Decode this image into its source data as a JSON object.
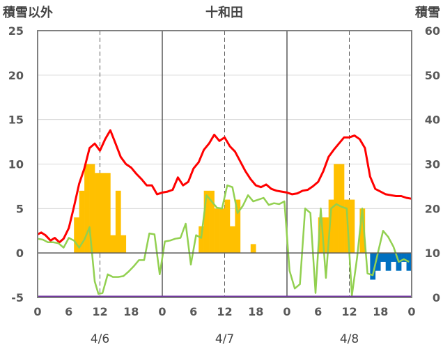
{
  "chart_data": {
    "type": "combo",
    "title": "十和田",
    "left_axis_label": "積雪以外",
    "right_axis_label": "積雪",
    "left_ylim": [
      -5,
      25
    ],
    "left_ticks": [
      "25",
      "20",
      "15",
      "10",
      "5",
      "0",
      "-5"
    ],
    "right_ylim": [
      0,
      60
    ],
    "right_ticks": [
      "60",
      "50",
      "40",
      "30",
      "20",
      "10",
      "0"
    ],
    "x_hours": [
      0,
      72
    ],
    "x_tick_labels": [
      "0",
      "6",
      "12",
      "18",
      "0",
      "6",
      "12",
      "18",
      "0",
      "6",
      "12",
      "18",
      "0"
    ],
    "dates": [
      "4/6",
      "4/7",
      "4/8"
    ],
    "grid": true,
    "series": [
      {
        "kind": "line",
        "color": "#ff0000",
        "points": [
          [
            0,
            2.1
          ],
          [
            0.7,
            2.3
          ],
          [
            1.5,
            2.0
          ],
          [
            2.5,
            1.4
          ],
          [
            3.3,
            1.7
          ],
          [
            4.2,
            1.2
          ],
          [
            5,
            1.6
          ],
          [
            6,
            2.8
          ],
          [
            7,
            5.2
          ],
          [
            8,
            7.8
          ],
          [
            9,
            9.5
          ],
          [
            10,
            11.8
          ],
          [
            11,
            12.3
          ],
          [
            12,
            11.5
          ],
          [
            13,
            12.8
          ],
          [
            14,
            13.8
          ],
          [
            15,
            12.3
          ],
          [
            16,
            10.8
          ],
          [
            17,
            10.0
          ],
          [
            18,
            9.6
          ],
          [
            19,
            8.9
          ],
          [
            20,
            8.3
          ],
          [
            21,
            7.6
          ],
          [
            22,
            7.6
          ],
          [
            23,
            6.6
          ],
          [
            24,
            6.8
          ],
          [
            25,
            6.9
          ],
          [
            26,
            7.1
          ],
          [
            27,
            8.5
          ],
          [
            28,
            7.6
          ],
          [
            29,
            8.0
          ],
          [
            30,
            9.5
          ],
          [
            31,
            10.2
          ],
          [
            32,
            11.6
          ],
          [
            33,
            12.3
          ],
          [
            34,
            13.3
          ],
          [
            35,
            12.6
          ],
          [
            36,
            13.0
          ],
          [
            37,
            12.0
          ],
          [
            38,
            11.4
          ],
          [
            39,
            10.3
          ],
          [
            40,
            9.2
          ],
          [
            41,
            8.3
          ],
          [
            42,
            7.6
          ],
          [
            43,
            7.4
          ],
          [
            44,
            7.7
          ],
          [
            45,
            7.2
          ],
          [
            46,
            7.0
          ],
          [
            47,
            6.9
          ],
          [
            48,
            6.8
          ],
          [
            49,
            6.6
          ],
          [
            50,
            6.7
          ],
          [
            51,
            7.0
          ],
          [
            52,
            7.1
          ],
          [
            53,
            7.5
          ],
          [
            54,
            8.0
          ],
          [
            55,
            9.2
          ],
          [
            56,
            10.8
          ],
          [
            57,
            11.6
          ],
          [
            58,
            12.3
          ],
          [
            59,
            13.0
          ],
          [
            60,
            13.0
          ],
          [
            61,
            13.2
          ],
          [
            62,
            12.8
          ],
          [
            63,
            11.8
          ],
          [
            64,
            8.6
          ],
          [
            65,
            7.2
          ],
          [
            66,
            6.9
          ],
          [
            67,
            6.6
          ],
          [
            68,
            6.5
          ],
          [
            69,
            6.4
          ],
          [
            70,
            6.4
          ],
          [
            71,
            6.2
          ],
          [
            72,
            6.1
          ]
        ]
      },
      {
        "kind": "line",
        "color": "#92d050",
        "points": [
          [
            0,
            1.6
          ],
          [
            1,
            1.5
          ],
          [
            2,
            1.2
          ],
          [
            3,
            1.2
          ],
          [
            4,
            1.1
          ],
          [
            5,
            0.6
          ],
          [
            6,
            1.7
          ],
          [
            7,
            1.4
          ],
          [
            8,
            0.6
          ],
          [
            9,
            1.5
          ],
          [
            10,
            2.9
          ],
          [
            11,
            -3.2
          ],
          [
            11.7,
            -4.6
          ],
          [
            12.5,
            -4.5
          ],
          [
            13.5,
            -2.4
          ],
          [
            14.5,
            -2.7
          ],
          [
            15.5,
            -2.7
          ],
          [
            16.5,
            -2.6
          ],
          [
            17.5,
            -2.1
          ],
          [
            18.5,
            -1.5
          ],
          [
            19.5,
            -0.8
          ],
          [
            20.5,
            -0.8
          ],
          [
            21.5,
            2.2
          ],
          [
            22.5,
            2.1
          ],
          [
            23.5,
            -2.4
          ],
          [
            24.5,
            1.3
          ],
          [
            25.5,
            1.4
          ],
          [
            26.5,
            1.6
          ],
          [
            27.5,
            1.7
          ],
          [
            28.5,
            3.3
          ],
          [
            29.5,
            -1.3
          ],
          [
            30.5,
            2.0
          ],
          [
            31.5,
            1.7
          ],
          [
            32.5,
            6.5
          ],
          [
            33.5,
            5.8
          ],
          [
            34.5,
            5.1
          ],
          [
            35.5,
            5.0
          ],
          [
            36.5,
            7.6
          ],
          [
            37.5,
            7.4
          ],
          [
            38.5,
            4.5
          ],
          [
            39.5,
            5.3
          ],
          [
            40.5,
            6.5
          ],
          [
            41.5,
            5.8
          ],
          [
            42.5,
            6.0
          ],
          [
            43.5,
            6.2
          ],
          [
            44.5,
            5.4
          ],
          [
            45.5,
            5.6
          ],
          [
            46.5,
            5.5
          ],
          [
            47.5,
            5.8
          ],
          [
            48.5,
            -2.0
          ],
          [
            49.5,
            -4.0
          ],
          [
            50.5,
            -3.5
          ],
          [
            51.5,
            5.0
          ],
          [
            52.5,
            4.5
          ],
          [
            53.5,
            -4.5
          ],
          [
            54.5,
            5.0
          ],
          [
            55.5,
            -2.8
          ],
          [
            56.5,
            5.0
          ],
          [
            57.5,
            5.5
          ],
          [
            58.5,
            5.2
          ],
          [
            59.5,
            5.0
          ],
          [
            60.5,
            -4.8
          ],
          [
            61.5,
            -0.5
          ],
          [
            62.5,
            5.0
          ],
          [
            63.5,
            -2.3
          ],
          [
            64.5,
            -2.5
          ],
          [
            65.5,
            0.0
          ],
          [
            66.5,
            2.5
          ],
          [
            67.5,
            1.8
          ],
          [
            68.5,
            0.7
          ],
          [
            69.5,
            -1.0
          ],
          [
            70.5,
            -0.7
          ],
          [
            71.5,
            -1.0
          ]
        ]
      },
      {
        "kind": "line",
        "color": "#7030a0",
        "points": [
          [
            0,
            -4.9
          ],
          [
            72,
            -4.9
          ]
        ]
      },
      {
        "kind": "bar",
        "color": "#ffc000",
        "base": 0,
        "bars": [
          [
            7.5,
            4
          ],
          [
            8.5,
            7
          ],
          [
            9.5,
            10
          ],
          [
            10.5,
            10
          ],
          [
            11.5,
            9
          ],
          [
            12.5,
            9
          ],
          [
            13.5,
            9
          ],
          [
            14.5,
            2
          ],
          [
            15.5,
            7
          ],
          [
            16.5,
            2
          ],
          [
            31.5,
            3
          ],
          [
            32.5,
            7
          ],
          [
            33.5,
            7
          ],
          [
            34.5,
            5
          ],
          [
            35.5,
            5
          ],
          [
            36.5,
            6
          ],
          [
            37.5,
            3
          ],
          [
            38.5,
            6
          ],
          [
            41.5,
            1
          ],
          [
            54.5,
            4
          ],
          [
            55.5,
            4
          ],
          [
            56.5,
            6
          ],
          [
            57.5,
            10
          ],
          [
            58.5,
            10
          ],
          [
            59.5,
            6
          ],
          [
            60.5,
            6
          ],
          [
            62.5,
            5
          ]
        ]
      },
      {
        "kind": "bar",
        "color": "#0070c0",
        "base": 0,
        "bars": [
          [
            64.5,
            -3
          ],
          [
            65.5,
            -2
          ],
          [
            66.5,
            -1
          ],
          [
            67.5,
            -2
          ],
          [
            68.5,
            -1
          ],
          [
            69.5,
            -2
          ],
          [
            70.5,
            -1
          ],
          [
            71.5,
            -2
          ]
        ]
      }
    ]
  }
}
